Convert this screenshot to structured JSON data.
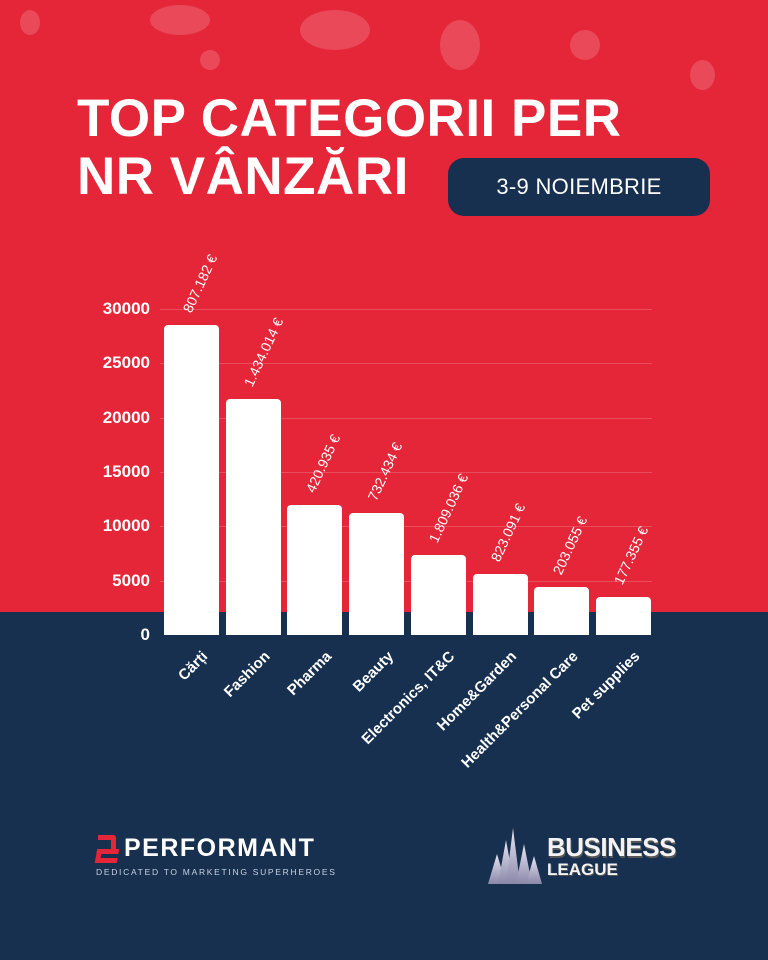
{
  "header": {
    "title_line1": "TOP CATEGORII PER",
    "title_line2": "NR VÂNZĂRI",
    "date_badge": "3-9 NOIEMBRIE"
  },
  "colors": {
    "background_top": "#E52538",
    "background_bottom": "#17304F",
    "bars": "#FFFFFF",
    "badge": "#17304F"
  },
  "chart_data": {
    "type": "bar",
    "title": "TOP CATEGORII PER NR VÂNZĂRI",
    "subtitle": "3-9 NOIEMBRIE",
    "xlabel": "",
    "ylabel": "",
    "ylim": [
      0,
      30000
    ],
    "yticks": [
      0,
      5000,
      10000,
      15000,
      20000,
      25000,
      30000
    ],
    "ytick_labels": [
      "0",
      "5000",
      "10000",
      "15000",
      "20000",
      "25000",
      "30000"
    ],
    "grid": true,
    "legend": null,
    "categories": [
      "Cărți",
      "Fashion",
      "Pharma",
      "Beauty",
      "Electronics, IT&C",
      "Home&Garden",
      "Health&Personal Care",
      "Pet supplies"
    ],
    "values": [
      28500,
      21700,
      12000,
      11200,
      7400,
      5600,
      4400,
      3500
    ],
    "annotations": [
      "807.182 €",
      "1.434.014 €",
      "420.935 €",
      "732.434 €",
      "1.809.036 €",
      "823.091 €",
      "203.055 €",
      "177.355 €"
    ]
  },
  "footer": {
    "left_logo_name": "PERFORMANT",
    "left_logo_tagline": "DEDICATED TO MARKETING SUPERHEROES",
    "right_logo_line1": "BUSINESS",
    "right_logo_line2": "LEAGUE"
  }
}
